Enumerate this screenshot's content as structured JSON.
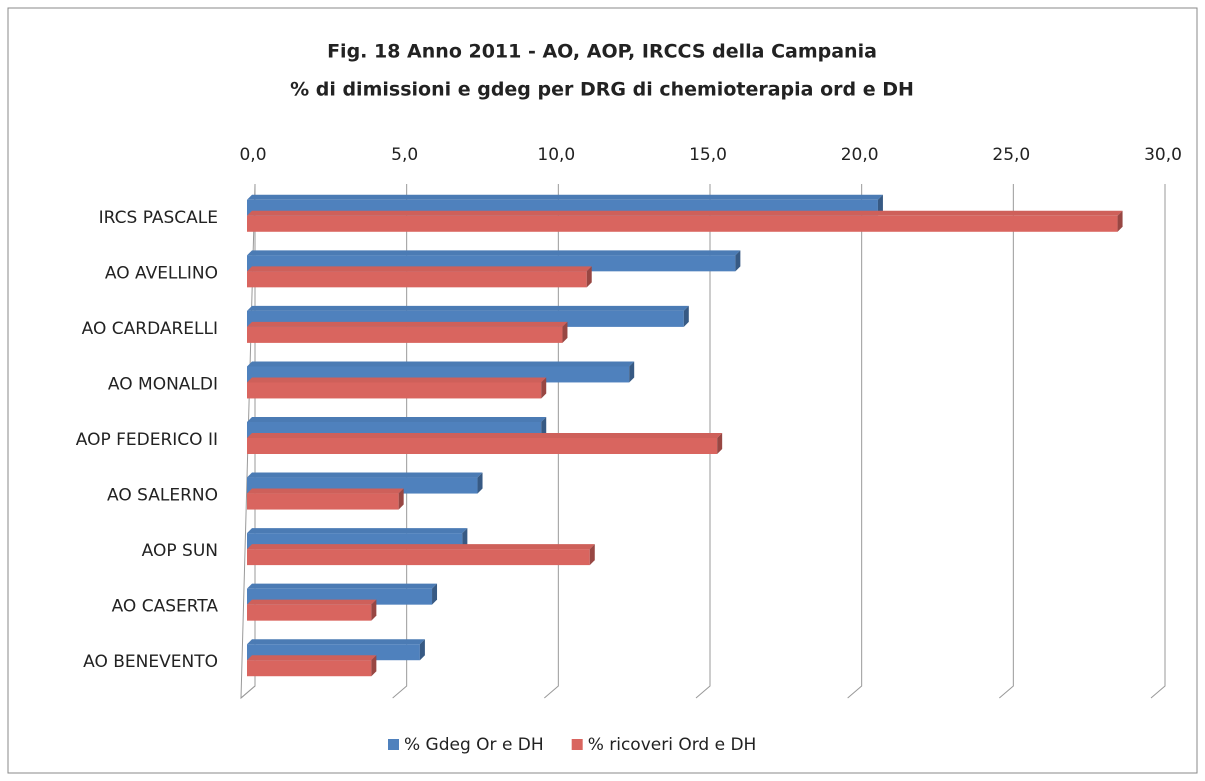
{
  "chart_data": {
    "type": "bar",
    "orientation": "horizontal",
    "title": "Fig. 18 Anno 2011 - AO, AOP, IRCCS della Campania",
    "subtitle": "% di dimissioni e  gdeg per DRG di chemioterapia ord e DH",
    "categories": [
      "IRCS PASCALE",
      "AO AVELLINO",
      "AO CARDARELLI",
      "AO MONALDI",
      "AOP FEDERICO II",
      "AO SALERNO",
      "AOP SUN",
      "AO CASERTA",
      "AO BENEVENTO"
    ],
    "series": [
      {
        "name": "% Gdeg Or e DH",
        "color": "#4f81bd",
        "values": [
          20.8,
          16.1,
          14.4,
          12.6,
          9.7,
          7.6,
          7.1,
          6.1,
          5.7
        ]
      },
      {
        "name": "% ricoveri Ord e DH",
        "color": "#d9655f",
        "values": [
          28.7,
          11.2,
          10.4,
          9.7,
          15.5,
          5.0,
          11.3,
          4.1,
          4.1
        ]
      }
    ],
    "xlim": [
      0,
      30
    ],
    "xticks": [
      {
        "value": 0,
        "label": "0,0"
      },
      {
        "value": 5,
        "label": "5,0"
      },
      {
        "value": 10,
        "label": "10,0"
      },
      {
        "value": 15,
        "label": "15,0"
      },
      {
        "value": 20,
        "label": "20,0"
      },
      {
        "value": 25,
        "label": "25,0"
      },
      {
        "value": 30,
        "label": "30,0"
      }
    ],
    "grid": true,
    "legend": "bottom"
  }
}
